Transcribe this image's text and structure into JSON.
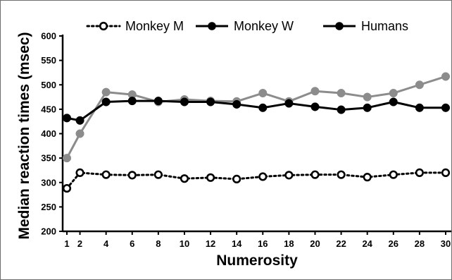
{
  "chart_data": {
    "type": "line",
    "xlabel": "Numerosity",
    "ylabel": "Median reaction times (msec)",
    "x_ticks": [
      1,
      2,
      4,
      6,
      8,
      10,
      12,
      14,
      16,
      18,
      20,
      22,
      24,
      26,
      28,
      30
    ],
    "y_ticks": [
      200,
      250,
      300,
      350,
      400,
      450,
      500,
      550,
      600
    ],
    "ylim": [
      200,
      600
    ],
    "grid": false,
    "legend_position": "top",
    "series": [
      {
        "name": "Monkey M",
        "style": "dotted-open-circle",
        "color": "#000000",
        "x": [
          1,
          2,
          4,
          6,
          8,
          10,
          12,
          14,
          16,
          18,
          20,
          22,
          24,
          26,
          28,
          30
        ],
        "values": [
          288,
          320,
          316,
          315,
          316,
          308,
          310,
          307,
          312,
          315,
          316,
          316,
          311,
          316,
          320,
          320
        ]
      },
      {
        "name": "Monkey W",
        "style": "solid-filled-circle",
        "color": "#000000",
        "x": [
          1,
          2,
          4,
          6,
          8,
          10,
          12,
          14,
          16,
          18,
          20,
          22,
          24,
          26,
          28,
          30
        ],
        "values": [
          432,
          427,
          465,
          467,
          467,
          465,
          465,
          460,
          453,
          462,
          455,
          449,
          453,
          465,
          453,
          453
        ]
      },
      {
        "name": "Humans",
        "style": "solid-gray-filled-circle",
        "color": "#8c8c8c",
        "x": [
          1,
          2,
          4,
          6,
          8,
          10,
          12,
          14,
          16,
          18,
          20,
          22,
          24,
          26,
          28,
          30
        ],
        "values": [
          350,
          400,
          485,
          480,
          465,
          470,
          467,
          466,
          483,
          466,
          487,
          483,
          475,
          483,
          500,
          517
        ]
      }
    ]
  }
}
